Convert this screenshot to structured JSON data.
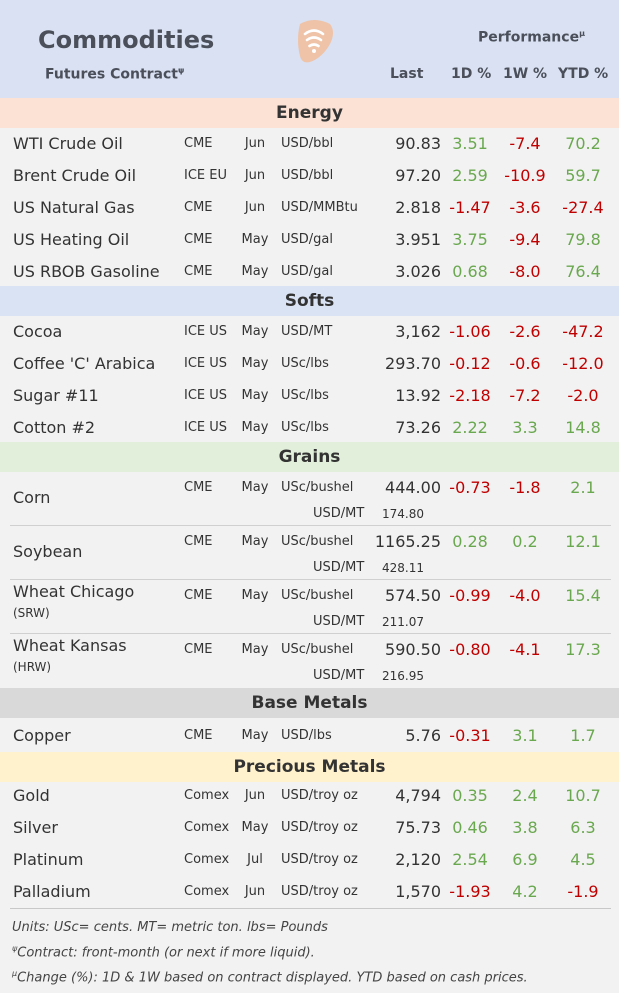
{
  "header": {
    "title": "Commodities",
    "subtitle": "Futures Contract",
    "subtitle_mark": "ψ",
    "performance": "Performance",
    "performance_mark": "µ",
    "col_last": "Last",
    "col_1d": "1D %",
    "col_1w": "1W %",
    "col_ytd": "YTD %",
    "logo_icon": "wifi-badge-icon"
  },
  "colors": {
    "positive": "#6aa84f",
    "negative": "#c00000"
  },
  "energy": {
    "title": "Energy",
    "rows": [
      {
        "name": "WTI Crude Oil",
        "exch": "CME",
        "month": "Jun",
        "unit": "USD/bbl",
        "last": "90.83",
        "d1": "3.51",
        "w1": "-7.4",
        "ytd": "70.2"
      },
      {
        "name": "Brent Crude Oil",
        "exch": "ICE EU",
        "month": "Jun",
        "unit": "USD/bbl",
        "last": "97.20",
        "d1": "2.59",
        "w1": "-10.9",
        "ytd": "59.7"
      },
      {
        "name": "US Natural Gas",
        "exch": "CME",
        "month": "Jun",
        "unit": "USD/MMBtu",
        "last": "2.818",
        "d1": "-1.47",
        "w1": "-3.6",
        "ytd": "-27.4"
      },
      {
        "name": "US Heating Oil",
        "exch": "CME",
        "month": "May",
        "unit": "USD/gal",
        "last": "3.951",
        "d1": "3.75",
        "w1": "-9.4",
        "ytd": "79.8"
      },
      {
        "name": "US RBOB Gasoline",
        "exch": "CME",
        "month": "May",
        "unit": "USD/gal",
        "last": "3.026",
        "d1": "0.68",
        "w1": "-8.0",
        "ytd": "76.4"
      }
    ]
  },
  "softs": {
    "title": "Softs",
    "rows": [
      {
        "name": "Cocoa",
        "exch": "ICE US",
        "month": "May",
        "unit": "USD/MT",
        "last": "3,162",
        "d1": "-1.06",
        "w1": "-2.6",
        "ytd": "-47.2"
      },
      {
        "name": "Coffee 'C' Arabica",
        "exch": "ICE US",
        "month": "May",
        "unit": "USc/lbs",
        "last": "293.70",
        "d1": "-0.12",
        "w1": "-0.6",
        "ytd": "-12.0"
      },
      {
        "name": "Sugar #11",
        "exch": "ICE US",
        "month": "May",
        "unit": "USc/lbs",
        "last": "13.92",
        "d1": "-2.18",
        "w1": "-7.2",
        "ytd": "-2.0"
      },
      {
        "name": "Cotton #2",
        "exch": "ICE US",
        "month": "May",
        "unit": "USc/lbs",
        "last": "73.26",
        "d1": "2.22",
        "w1": "3.3",
        "ytd": "14.8"
      }
    ]
  },
  "grains": {
    "title": "Grains",
    "rows": [
      {
        "name": "Corn",
        "sub": "",
        "exch": "CME",
        "month": "May",
        "unit": "USc/bushel",
        "last": "444.00",
        "d1": "-0.73",
        "w1": "-1.8",
        "ytd": "2.1",
        "unit2": "USD/MT",
        "last2": "174.80"
      },
      {
        "name": "Soybean",
        "sub": "",
        "exch": "CME",
        "month": "May",
        "unit": "USc/bushel",
        "last": "1165.25",
        "d1": "0.28",
        "w1": "0.2",
        "ytd": "12.1",
        "unit2": "USD/MT",
        "last2": "428.11"
      },
      {
        "name": "Wheat Chicago",
        "sub": "(SRW)",
        "exch": "CME",
        "month": "May",
        "unit": "USc/bushel",
        "last": "574.50",
        "d1": "-0.99",
        "w1": "-4.0",
        "ytd": "15.4",
        "unit2": "USD/MT",
        "last2": "211.07"
      },
      {
        "name": "Wheat Kansas",
        "sub": "(HRW)",
        "exch": "CME",
        "month": "May",
        "unit": "USc/bushel",
        "last": "590.50",
        "d1": "-0.80",
        "w1": "-4.1",
        "ytd": "17.3",
        "unit2": "USD/MT",
        "last2": "216.95"
      }
    ]
  },
  "base_metals": {
    "title": "Base Metals",
    "rows": [
      {
        "name": "Copper",
        "exch": "CME",
        "month": "May",
        "unit": "USD/lbs",
        "last": "5.76",
        "d1": "-0.31",
        "w1": "3.1",
        "ytd": "1.7"
      }
    ]
  },
  "precious_metals": {
    "title": "Precious Metals",
    "rows": [
      {
        "name": "Gold",
        "exch": "Comex",
        "month": "Jun",
        "unit": "USD/troy oz",
        "last": "4,794",
        "d1": "0.35",
        "w1": "2.4",
        "ytd": "10.7"
      },
      {
        "name": "Silver",
        "exch": "Comex",
        "month": "May",
        "unit": "USD/troy oz",
        "last": "75.73",
        "d1": "0.46",
        "w1": "3.8",
        "ytd": "6.3"
      },
      {
        "name": "Platinum",
        "exch": "Comex",
        "month": "Jul",
        "unit": "USD/troy oz",
        "last": "2,120",
        "d1": "2.54",
        "w1": "6.9",
        "ytd": "4.5"
      },
      {
        "name": "Palladium",
        "exch": "Comex",
        "month": "Jun",
        "unit": "USD/troy oz",
        "last": "1,570",
        "d1": "-1.93",
        "w1": "4.2",
        "ytd": "-1.9"
      }
    ]
  },
  "footnotes": {
    "units": "Units: USc= cents.  MT= metric ton.  lbs= Pounds",
    "contract_mark": "ψ",
    "contract": "Contract: front-month (or next if more liquid).",
    "change_mark": "µ",
    "change": "Change (%): 1D & 1W based on contract displayed. YTD based on cash prices."
  }
}
